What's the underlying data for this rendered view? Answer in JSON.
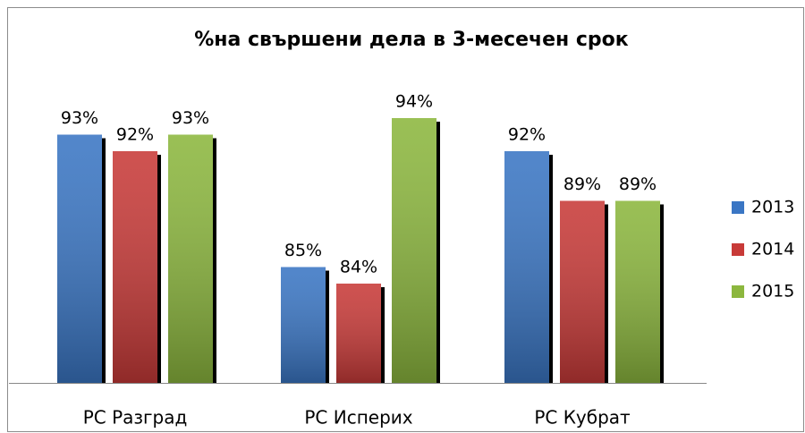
{
  "chart_data": {
    "type": "bar",
    "title": "%на свършени дела в 3-месечен срок",
    "categories": [
      "РС Разград",
      "РС Исперих",
      "РС Кубрат"
    ],
    "series": [
      {
        "name": "2013",
        "color": "#3a76c4",
        "values": [
          93,
          85,
          92
        ],
        "value_labels": [
          "93%",
          "85%",
          "92%"
        ]
      },
      {
        "name": "2014",
        "color": "#c83a38",
        "values": [
          92,
          84,
          89
        ],
        "value_labels": [
          "92%",
          "84%",
          "89%"
        ]
      },
      {
        "name": "2015",
        "color": "#8cb73e",
        "values": [
          93,
          94,
          89
        ],
        "value_labels": [
          "93%",
          "94%",
          "89%"
        ]
      }
    ],
    "ylim": [
      78,
      96
    ],
    "legend": "right"
  }
}
